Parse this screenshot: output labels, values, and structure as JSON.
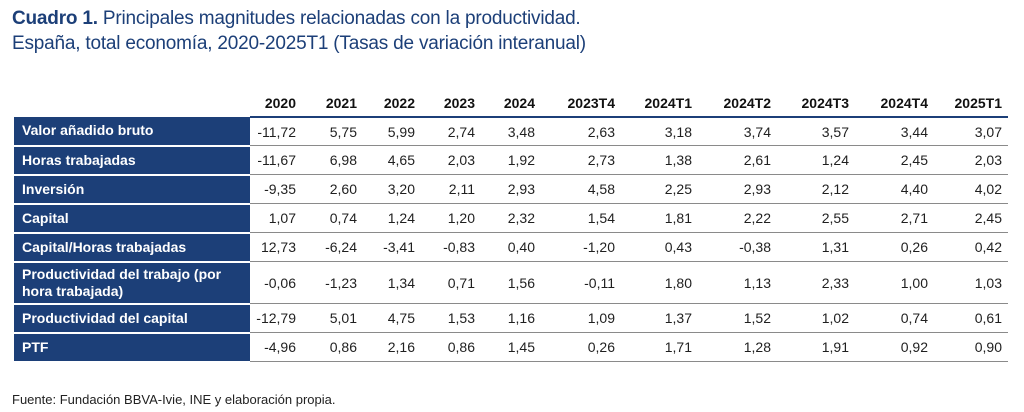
{
  "title": {
    "bold": "Cuadro 1.",
    "line1": " Principales magnitudes relacionadas con la productividad.",
    "line2": "España, total economía, 2020-2025T1 (Tasas de variación interanual)"
  },
  "table": {
    "columns": [
      "2020",
      "2021",
      "2022",
      "2023",
      "2024",
      "2023T4",
      "2024T1",
      "2024T2",
      "2024T3",
      "2024T4",
      "2025T1"
    ],
    "rows": [
      {
        "label": "Valor añadido bruto",
        "values": [
          "-11,72",
          "5,75",
          "5,99",
          "2,74",
          "3,48",
          "2,63",
          "3,18",
          "3,74",
          "3,57",
          "3,44",
          "3,07"
        ]
      },
      {
        "label": "Horas trabajadas",
        "values": [
          "-11,67",
          "6,98",
          "4,65",
          "2,03",
          "1,92",
          "2,73",
          "1,38",
          "2,61",
          "1,24",
          "2,45",
          "2,03"
        ]
      },
      {
        "label": "Inversión",
        "values": [
          "-9,35",
          "2,60",
          "3,20",
          "2,11",
          "2,93",
          "4,58",
          "2,25",
          "2,93",
          "2,12",
          "4,40",
          "4,02"
        ]
      },
      {
        "label": "Capital",
        "values": [
          "1,07",
          "0,74",
          "1,24",
          "1,20",
          "2,32",
          "1,54",
          "1,81",
          "2,22",
          "2,55",
          "2,71",
          "2,45"
        ]
      },
      {
        "label": "Capital/Horas trabajadas",
        "values": [
          "12,73",
          "-6,24",
          "-3,41",
          "-0,83",
          "0,40",
          "-1,20",
          "0,43",
          "-0,38",
          "1,31",
          "0,26",
          "0,42"
        ]
      },
      {
        "label": "Productividad del trabajo (por hora trabajada)",
        "values": [
          "-0,06",
          "-1,23",
          "1,34",
          "0,71",
          "1,56",
          "-0,11",
          "1,80",
          "1,13",
          "2,33",
          "1,00",
          "1,03"
        ]
      },
      {
        "label": "Productividad del capital",
        "values": [
          "-12,79",
          "5,01",
          "4,75",
          "1,53",
          "1,16",
          "1,09",
          "1,37",
          "1,52",
          "1,02",
          "0,74",
          "0,61"
        ]
      },
      {
        "label": "PTF",
        "values": [
          "-4,96",
          "0,86",
          "2,16",
          "0,86",
          "1,45",
          "0,26",
          "1,71",
          "1,28",
          "1,91",
          "0,92",
          "0,90"
        ]
      }
    ]
  },
  "source": "Fuente: Fundación BBVA-Ivie, INE y elaboración propia."
}
